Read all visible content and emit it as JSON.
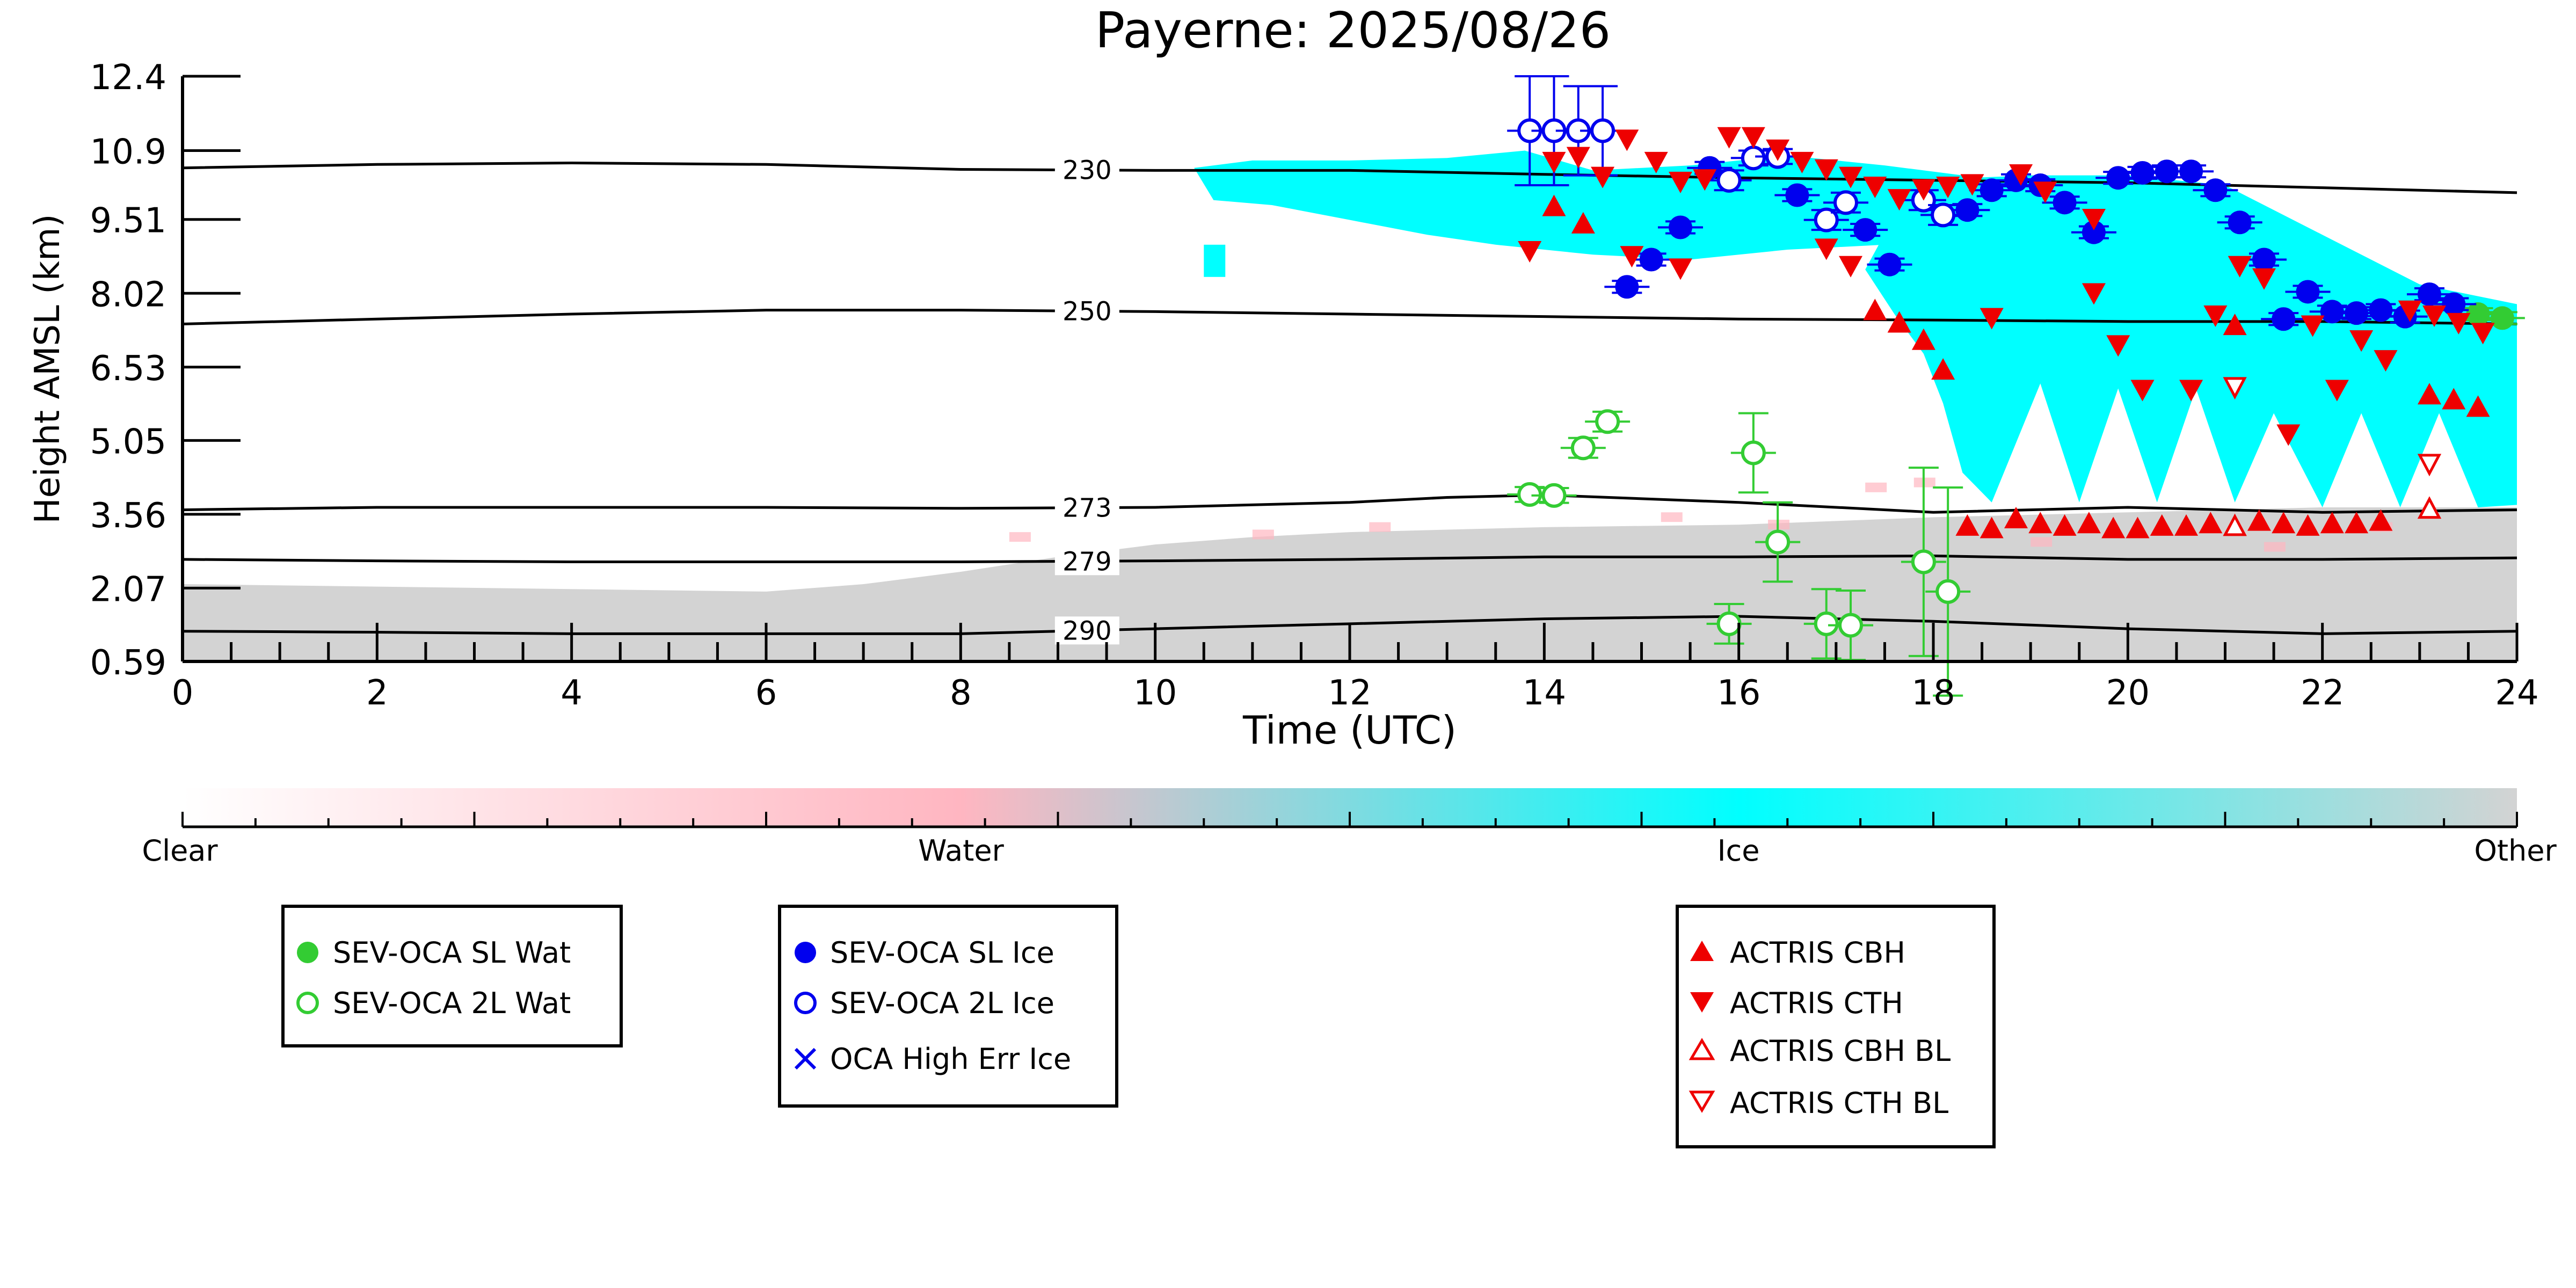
{
  "chart_data": {
    "type": "scatter",
    "title": "Payerne: 2025/08/26",
    "xlabel": "Time (UTC)",
    "ylabel": "Height AMSL (km)",
    "xlim": [
      0,
      24
    ],
    "ylim": [
      0.59,
      12.4
    ],
    "x_ticks": [
      "0",
      "2",
      "4",
      "6",
      "8",
      "10",
      "12",
      "14",
      "16",
      "18",
      "20",
      "22",
      "24"
    ],
    "y_ticks": [
      "12.4",
      "10.9",
      "9.51",
      "8.02",
      "6.53",
      "5.05",
      "3.56",
      "2.07",
      "0.59"
    ],
    "y_tick_values": [
      12.4,
      10.9,
      9.51,
      8.02,
      6.53,
      5.05,
      3.56,
      2.07,
      0.59
    ],
    "colors": {
      "water": "#ffb6c1",
      "ice": "#00ffff",
      "other": "#d3d3d3",
      "sl_wat": "#33cc33",
      "oca_ice": "#0000ee",
      "actris": "#ee0000"
    },
    "isotherms": [
      {
        "label": "230",
        "x": [
          0,
          2,
          4,
          6,
          8,
          10,
          12,
          14,
          16,
          18,
          20,
          22,
          24
        ],
        "y": [
          10.55,
          10.62,
          10.65,
          10.62,
          10.52,
          10.5,
          10.5,
          10.42,
          10.35,
          10.3,
          10.25,
          10.15,
          10.05
        ],
        "label_x": 9.3
      },
      {
        "label": "250",
        "x": [
          0,
          2,
          4,
          6,
          8,
          10,
          12,
          14,
          16,
          18,
          20,
          22,
          24
        ],
        "y": [
          7.4,
          7.5,
          7.6,
          7.68,
          7.68,
          7.65,
          7.6,
          7.55,
          7.5,
          7.48,
          7.45,
          7.45,
          7.4
        ],
        "label_x": 9.3
      },
      {
        "label": "273",
        "x": [
          0,
          2,
          4,
          6,
          8,
          10,
          12,
          13,
          14,
          16,
          18,
          20,
          22,
          24
        ],
        "y": [
          3.65,
          3.7,
          3.7,
          3.7,
          3.68,
          3.7,
          3.8,
          3.9,
          3.95,
          3.8,
          3.6,
          3.7,
          3.6,
          3.65
        ],
        "label_x": 9.3
      },
      {
        "label": "279",
        "x": [
          0,
          2,
          4,
          6,
          8,
          10,
          12,
          14,
          16,
          18,
          20,
          22,
          24
        ],
        "y": [
          2.65,
          2.62,
          2.6,
          2.6,
          2.6,
          2.62,
          2.65,
          2.7,
          2.7,
          2.72,
          2.65,
          2.65,
          2.68
        ],
        "label_x": 9.3
      },
      {
        "label": "290",
        "x": [
          0,
          2,
          4,
          6,
          8,
          10,
          12,
          14,
          16,
          18,
          20,
          22,
          24
        ],
        "y": [
          1.2,
          1.18,
          1.15,
          1.15,
          1.15,
          1.25,
          1.35,
          1.45,
          1.5,
          1.4,
          1.25,
          1.15,
          1.2
        ],
        "label_x": 9.3
      }
    ],
    "series": [
      {
        "name": "SEV-OCA SL Wat",
        "marker": "circle-filled",
        "color": "#33cc33",
        "points": [
          {
            "x": 23.6,
            "y": 7.6,
            "err": 0.12
          },
          {
            "x": 23.85,
            "y": 7.52,
            "err": 0.12
          }
        ]
      },
      {
        "name": "SEV-OCA 2L Wat",
        "marker": "circle-open",
        "color": "#33cc33",
        "points": [
          {
            "x": 13.85,
            "y": 3.96,
            "err": 0.15
          },
          {
            "x": 14.1,
            "y": 3.94,
            "err": 0.15
          },
          {
            "x": 14.4,
            "y": 4.9,
            "err": 0.2
          },
          {
            "x": 14.65,
            "y": 5.43,
            "err": 0.2
          },
          {
            "x": 15.9,
            "y": 1.35,
            "err": 0.4
          },
          {
            "x": 16.15,
            "y": 4.8,
            "err": 0.8
          },
          {
            "x": 16.4,
            "y": 3.0,
            "err": 0.8
          },
          {
            "x": 16.9,
            "y": 1.35,
            "err": 0.7
          },
          {
            "x": 17.15,
            "y": 1.32,
            "err": 0.7
          },
          {
            "x": 17.9,
            "y": 2.6,
            "err": 1.9
          },
          {
            "x": 18.15,
            "y": 2.0,
            "err": 2.1
          }
        ]
      },
      {
        "name": "SEV-OCA SL Ice",
        "marker": "circle-filled",
        "color": "#0000ee",
        "points": [
          {
            "x": 14.85,
            "y": 8.15,
            "err": 0.12
          },
          {
            "x": 15.1,
            "y": 8.7,
            "err": 0.12
          },
          {
            "x": 15.4,
            "y": 9.35,
            "err": 0.12
          },
          {
            "x": 15.7,
            "y": 10.55,
            "err": 0.12
          },
          {
            "x": 16.6,
            "y": 10.0,
            "err": 0.12
          },
          {
            "x": 17.3,
            "y": 9.3,
            "err": 0.12
          },
          {
            "x": 17.55,
            "y": 8.6,
            "err": 0.12
          },
          {
            "x": 18.35,
            "y": 9.7,
            "err": 0.12
          },
          {
            "x": 18.6,
            "y": 10.1,
            "err": 0.12
          },
          {
            "x": 18.85,
            "y": 10.3,
            "err": 0.12
          },
          {
            "x": 19.1,
            "y": 10.2,
            "err": 0.12
          },
          {
            "x": 19.35,
            "y": 9.85,
            "err": 0.12
          },
          {
            "x": 19.65,
            "y": 9.25,
            "err": 0.12
          },
          {
            "x": 19.9,
            "y": 10.35,
            "err": 0.12
          },
          {
            "x": 20.15,
            "y": 10.45,
            "err": 0.12
          },
          {
            "x": 20.4,
            "y": 10.48,
            "err": 0.12
          },
          {
            "x": 20.65,
            "y": 10.48,
            "err": 0.12
          },
          {
            "x": 20.9,
            "y": 10.1,
            "err": 0.12
          },
          {
            "x": 21.15,
            "y": 9.45,
            "err": 0.12
          },
          {
            "x": 21.4,
            "y": 8.7,
            "err": 0.12
          },
          {
            "x": 21.6,
            "y": 7.5,
            "err": 0.12
          },
          {
            "x": 21.85,
            "y": 8.05,
            "err": 0.12
          },
          {
            "x": 22.1,
            "y": 7.65,
            "err": 0.12
          },
          {
            "x": 22.35,
            "y": 7.62,
            "err": 0.12
          },
          {
            "x": 22.6,
            "y": 7.68,
            "err": 0.12
          },
          {
            "x": 22.85,
            "y": 7.55,
            "err": 0.12
          },
          {
            "x": 23.1,
            "y": 8.0,
            "err": 0.12
          },
          {
            "x": 23.35,
            "y": 7.8,
            "err": 0.12
          }
        ]
      },
      {
        "name": "SEV-OCA 2L Ice",
        "marker": "circle-open",
        "color": "#0000ee",
        "points": [
          {
            "x": 13.85,
            "y": 11.3,
            "err": 1.1
          },
          {
            "x": 14.1,
            "y": 11.3,
            "err": 1.1
          },
          {
            "x": 14.35,
            "y": 11.3,
            "err": 0.9
          },
          {
            "x": 14.6,
            "y": 11.3,
            "err": 0.9
          },
          {
            "x": 15.9,
            "y": 10.3,
            "err": 0.2
          },
          {
            "x": 16.15,
            "y": 10.75,
            "err": 0.15
          },
          {
            "x": 16.4,
            "y": 10.78,
            "err": 0.15
          },
          {
            "x": 16.9,
            "y": 9.5,
            "err": 0.2
          },
          {
            "x": 17.1,
            "y": 9.85,
            "err": 0.2
          },
          {
            "x": 17.9,
            "y": 9.9,
            "err": 0.2
          },
          {
            "x": 18.1,
            "y": 9.6,
            "err": 0.2
          }
        ]
      },
      {
        "name": "OCA High Err Ice",
        "marker": "x",
        "color": "#0000ee",
        "points": []
      },
      {
        "name": "ACTRIS CBH",
        "marker": "triangle-up-filled",
        "color": "#ee0000",
        "points": [
          {
            "x": 14.1,
            "y": 9.75
          },
          {
            "x": 14.4,
            "y": 9.4
          },
          {
            "x": 17.4,
            "y": 7.65
          },
          {
            "x": 17.65,
            "y": 7.4
          },
          {
            "x": 17.9,
            "y": 7.05
          },
          {
            "x": 18.1,
            "y": 6.45
          },
          {
            "x": 18.35,
            "y": 3.3
          },
          {
            "x": 18.6,
            "y": 3.25
          },
          {
            "x": 18.85,
            "y": 3.45
          },
          {
            "x": 19.1,
            "y": 3.35
          },
          {
            "x": 19.35,
            "y": 3.3
          },
          {
            "x": 19.6,
            "y": 3.35
          },
          {
            "x": 19.85,
            "y": 3.25
          },
          {
            "x": 20.1,
            "y": 3.25
          },
          {
            "x": 20.35,
            "y": 3.3
          },
          {
            "x": 20.6,
            "y": 3.3
          },
          {
            "x": 20.85,
            "y": 3.35
          },
          {
            "x": 21.1,
            "y": 3.3
          },
          {
            "x": 21.35,
            "y": 3.4
          },
          {
            "x": 21.6,
            "y": 3.35
          },
          {
            "x": 21.85,
            "y": 3.3
          },
          {
            "x": 22.1,
            "y": 3.35
          },
          {
            "x": 22.35,
            "y": 3.35
          },
          {
            "x": 22.6,
            "y": 3.4
          },
          {
            "x": 21.1,
            "y": 7.35
          },
          {
            "x": 23.1,
            "y": 5.95
          },
          {
            "x": 23.35,
            "y": 5.85
          },
          {
            "x": 23.6,
            "y": 5.7
          }
        ]
      },
      {
        "name": "ACTRIS CTH",
        "marker": "triangle-down-filled",
        "color": "#ee0000",
        "points": [
          {
            "x": 13.85,
            "y": 8.9
          },
          {
            "x": 14.1,
            "y": 10.7
          },
          {
            "x": 14.35,
            "y": 10.8
          },
          {
            "x": 14.6,
            "y": 10.4
          },
          {
            "x": 14.85,
            "y": 11.15
          },
          {
            "x": 15.15,
            "y": 10.7
          },
          {
            "x": 15.4,
            "y": 10.3
          },
          {
            "x": 15.65,
            "y": 10.35
          },
          {
            "x": 15.9,
            "y": 11.2
          },
          {
            "x": 16.15,
            "y": 11.2
          },
          {
            "x": 16.4,
            "y": 10.95
          },
          {
            "x": 16.65,
            "y": 10.7
          },
          {
            "x": 16.9,
            "y": 10.55
          },
          {
            "x": 17.15,
            "y": 10.4
          },
          {
            "x": 17.4,
            "y": 10.2
          },
          {
            "x": 17.65,
            "y": 9.95
          },
          {
            "x": 17.9,
            "y": 10.15
          },
          {
            "x": 18.15,
            "y": 10.2
          },
          {
            "x": 18.4,
            "y": 10.25
          },
          {
            "x": 18.9,
            "y": 10.45
          },
          {
            "x": 19.15,
            "y": 10.1
          },
          {
            "x": 14.9,
            "y": 8.8
          },
          {
            "x": 15.4,
            "y": 8.55
          },
          {
            "x": 16.9,
            "y": 8.95
          },
          {
            "x": 17.15,
            "y": 8.6
          },
          {
            "x": 18.6,
            "y": 7.55
          },
          {
            "x": 19.65,
            "y": 8.05
          },
          {
            "x": 19.9,
            "y": 7.0
          },
          {
            "x": 20.15,
            "y": 6.1
          },
          {
            "x": 20.65,
            "y": 6.1
          },
          {
            "x": 20.9,
            "y": 7.6
          },
          {
            "x": 21.15,
            "y": 8.6
          },
          {
            "x": 21.4,
            "y": 8.35
          },
          {
            "x": 21.65,
            "y": 5.2
          },
          {
            "x": 21.9,
            "y": 7.4
          },
          {
            "x": 22.15,
            "y": 6.1
          },
          {
            "x": 22.4,
            "y": 7.1
          },
          {
            "x": 22.65,
            "y": 6.7
          },
          {
            "x": 22.9,
            "y": 7.7
          },
          {
            "x": 23.15,
            "y": 7.6
          },
          {
            "x": 23.4,
            "y": 7.45
          },
          {
            "x": 23.65,
            "y": 7.25
          },
          {
            "x": 19.65,
            "y": 9.55
          }
        ]
      },
      {
        "name": "ACTRIS CBH BL",
        "marker": "triangle-up-open",
        "color": "#ee0000",
        "points": [
          {
            "x": 21.1,
            "y": 3.3
          },
          {
            "x": 23.1,
            "y": 3.65
          }
        ]
      },
      {
        "name": "ACTRIS CTH BL",
        "marker": "triangle-down-open",
        "color": "#ee0000",
        "points": [
          {
            "x": 21.1,
            "y": 6.15
          },
          {
            "x": 23.1,
            "y": 4.6
          }
        ]
      }
    ],
    "colorbar": {
      "labels": [
        "Clear",
        "Water",
        "Ice",
        "Other"
      ]
    },
    "legends": [
      {
        "entries": [
          "SEV-OCA SL Wat",
          "SEV-OCA 2L Wat"
        ]
      },
      {
        "entries": [
          "SEV-OCA SL Ice",
          "SEV-OCA 2L Ice",
          "OCA High Err Ice"
        ]
      },
      {
        "entries": [
          "ACTRIS CBH",
          "ACTRIS CTH",
          "ACTRIS CBH BL",
          "ACTRIS CTH BL"
        ]
      }
    ]
  }
}
